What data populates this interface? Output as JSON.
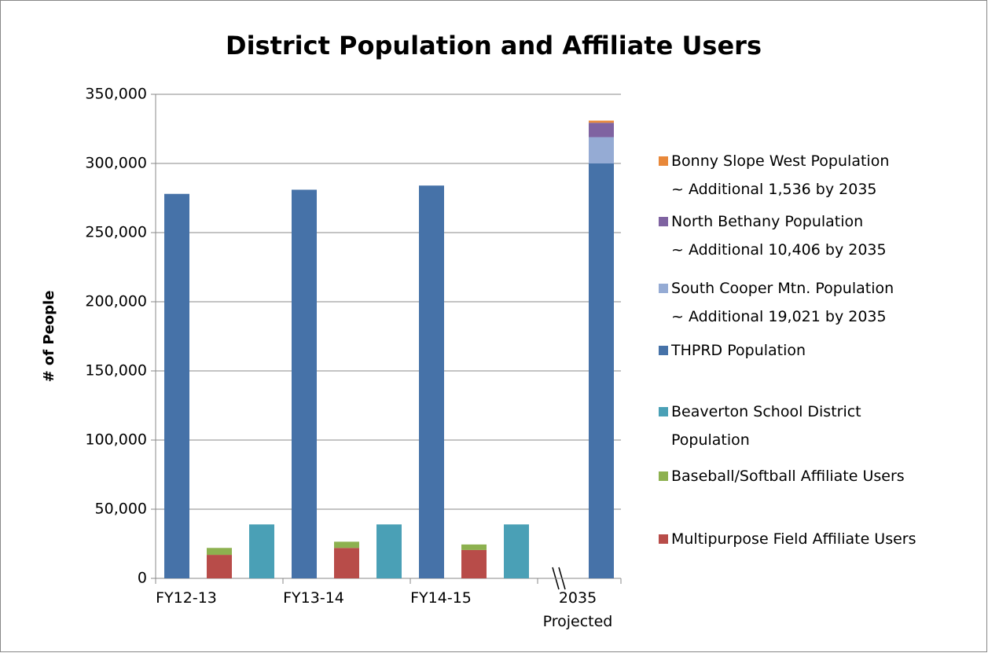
{
  "chart_data": {
    "type": "stacked_bar",
    "title": "District Population and Affiliate Users",
    "y_label": "# of People",
    "categories": [
      "FY12-13",
      "FY13-14",
      "FY14-15",
      "2035\nProjected"
    ],
    "series": [
      {
        "name": "Bonny Slope West Population\n~ Additional 1,536 by 2035",
        "color": "#e8883a",
        "values": [
          null,
          null,
          null,
          1536
        ]
      },
      {
        "name": "North Bethany Population\n~ Additional 10,406 by 2035",
        "color": "#7f63a1",
        "values": [
          null,
          null,
          null,
          10406
        ]
      },
      {
        "name": "South Cooper Mtn. Population\n~ Additional 19,021 by 2035",
        "color": "#95abd4",
        "values": [
          null,
          null,
          null,
          19021
        ]
      },
      {
        "name": "THPRD Population",
        "color": "#4672a8",
        "values": [
          278000,
          281000,
          284000,
          300000
        ]
      },
      {
        "name": "Beaverton School District\nPopulation",
        "color": "#4aa0b6",
        "values": [
          39000,
          39000,
          39000,
          null
        ]
      },
      {
        "name": "Baseball/Softball Affiliate Users",
        "color": "#8db14f",
        "values": [
          5000,
          4500,
          4000,
          null
        ]
      },
      {
        "name": "Multipurpose Field Affiliate Users",
        "color": "#b84c49",
        "values": [
          17000,
          22000,
          20500,
          null
        ]
      }
    ],
    "ylim": [
      0,
      350000
    ],
    "yticks": [
      0,
      {
        "value": 50000,
        "label": "50,000"
      },
      {
        "value": 100000,
        "label": "100,000"
      },
      {
        "value": 150000,
        "label": "150,000"
      },
      {
        "value": 200000,
        "label": "200,000"
      },
      {
        "value": 250000,
        "label": "250,000"
      },
      {
        "value": 300000,
        "label": "300,000"
      },
      {
        "value": 350000,
        "label": "350,000"
      }
    ],
    "grid": true,
    "legend": "right"
  }
}
